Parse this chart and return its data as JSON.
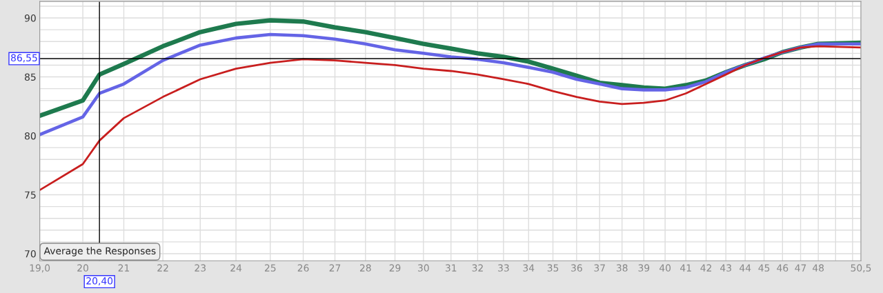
{
  "chart_data": {
    "type": "line",
    "x": [
      19,
      20,
      20.4,
      21,
      22,
      23,
      24,
      25,
      26,
      27,
      28,
      29,
      30,
      31,
      32,
      33,
      34,
      35,
      36,
      37,
      38,
      39,
      40,
      41,
      42,
      43,
      44,
      45,
      46,
      47,
      48,
      50.5
    ],
    "series": [
      {
        "color": "#1e7a4e",
        "values": [
          81.7,
          83.0,
          85.2,
          86.1,
          87.6,
          88.8,
          89.5,
          89.8,
          89.7,
          89.2,
          88.8,
          88.3,
          87.8,
          87.4,
          87.0,
          86.7,
          86.3,
          85.7,
          85.1,
          84.5,
          84.3,
          84.1,
          84.0,
          84.3,
          84.7,
          85.4,
          86.0,
          86.5,
          87.1,
          87.5,
          87.8,
          87.9
        ]
      },
      {
        "color": "#6464e6",
        "values": [
          80.1,
          81.6,
          83.6,
          84.4,
          86.4,
          87.7,
          88.3,
          88.6,
          88.5,
          88.2,
          87.8,
          87.3,
          87.0,
          86.7,
          86.5,
          86.2,
          85.8,
          85.4,
          84.8,
          84.4,
          84.0,
          83.9,
          83.9,
          84.1,
          84.6,
          85.4,
          86.0,
          86.6,
          87.1,
          87.5,
          87.8,
          87.8
        ]
      },
      {
        "color": "#c81e1e",
        "values": [
          75.4,
          77.6,
          79.6,
          81.5,
          83.3,
          84.8,
          85.7,
          86.2,
          86.5,
          86.4,
          86.2,
          86.0,
          85.7,
          85.5,
          85.2,
          84.8,
          84.4,
          83.8,
          83.3,
          82.9,
          82.7,
          82.8,
          83.0,
          83.6,
          84.4,
          85.2,
          86.0,
          86.6,
          87.1,
          87.5,
          87.6,
          87.5
        ]
      }
    ],
    "log": "x",
    "xlim": [
      19,
      50.5
    ],
    "xticks": [
      {
        "value": 19,
        "label": "19,0"
      },
      20,
      21,
      22,
      23,
      24,
      25,
      26,
      27,
      28,
      29,
      30,
      31,
      32,
      33,
      34,
      35,
      36,
      37,
      38,
      39,
      40,
      41,
      42,
      43,
      44,
      45,
      46,
      47,
      48,
      {
        "value": 49,
        "label": null
      },
      {
        "value": 50,
        "label": null
      },
      {
        "value": 50.5,
        "label": "50,5"
      }
    ],
    "ylim": [
      69.4,
      91.4
    ],
    "yticks": [
      70,
      {
        "value": 71,
        "label": null
      },
      {
        "value": 72,
        "label": null
      },
      {
        "value": 73,
        "label": null
      },
      {
        "value": 74,
        "label": null
      },
      75,
      {
        "value": 76,
        "label": null
      },
      {
        "value": 77,
        "label": null
      },
      {
        "value": 78,
        "label": null
      },
      {
        "value": 79,
        "label": null
      },
      80,
      {
        "value": 81,
        "label": null
      },
      {
        "value": 82,
        "label": null
      },
      {
        "value": 83,
        "label": null
      },
      {
        "value": 84,
        "label": null
      },
      85,
      {
        "value": 86,
        "label": null
      },
      {
        "value": 87,
        "label": null
      },
      {
        "value": 88,
        "label": null
      },
      {
        "value": 89,
        "label": null
      },
      90,
      {
        "value": 91,
        "label": null
      }
    ],
    "grid": true,
    "ref_lines": [
      {
        "axis": "y",
        "value": 86.55,
        "label": "86,55",
        "color": "#000000"
      },
      {
        "axis": "x",
        "value": 20.4,
        "label": "20,40",
        "color": "#000000"
      }
    ],
    "annotations": [
      "Average the Responses"
    ]
  }
}
